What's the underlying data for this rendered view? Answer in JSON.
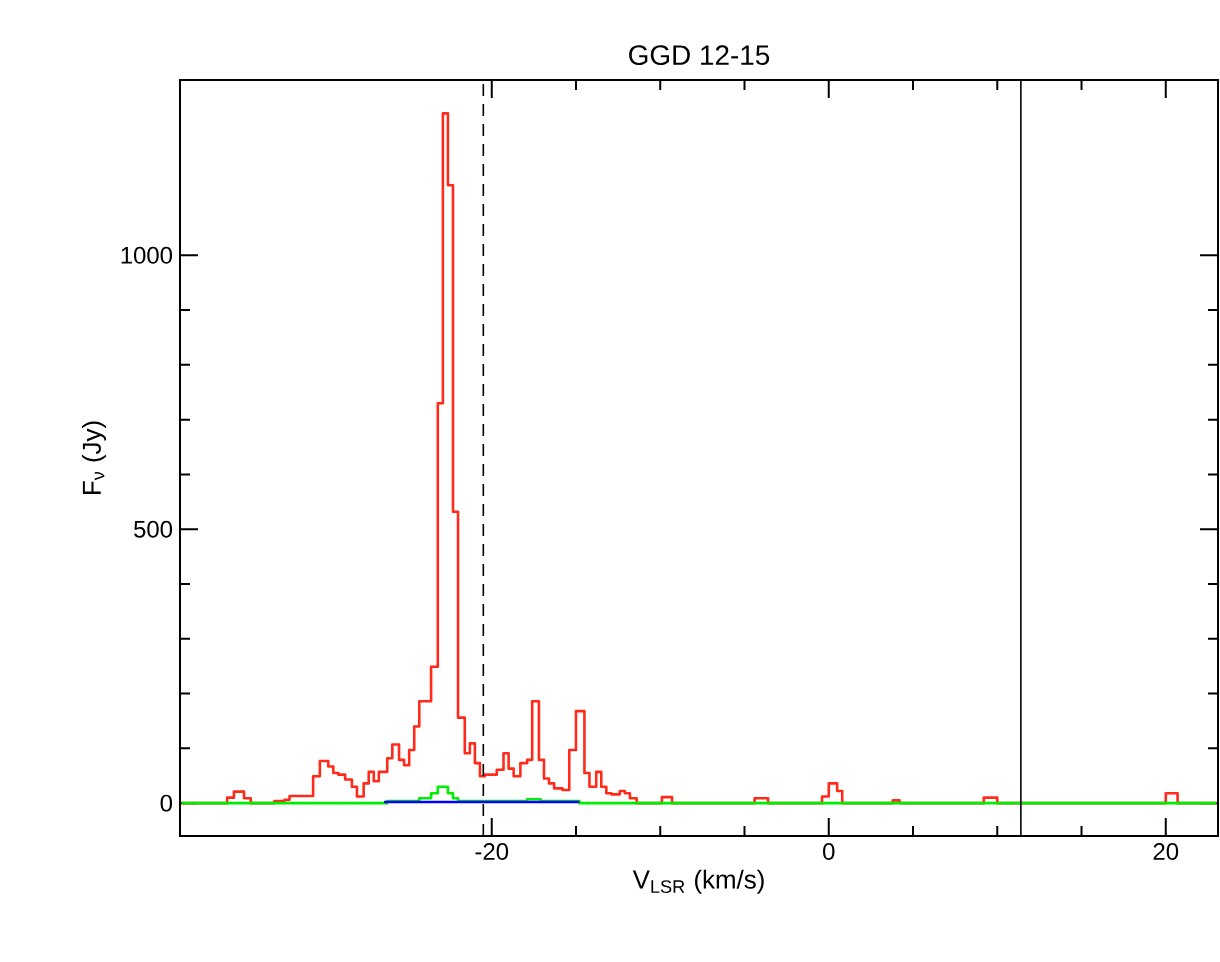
{
  "chart_data": {
    "type": "step",
    "title": "GGD 12-15",
    "xlabel": "V$_{LSR}$ (km/s)",
    "ylabel": "F$_{ν}$ (Jy)",
    "xlim": [
      -38.5,
      23.1
    ],
    "ylim": [
      -60,
      1320
    ],
    "xticks": [
      -20,
      0,
      20
    ],
    "yticks": [
      0,
      500,
      1000
    ],
    "series": [
      {
        "color": "#ff2a1a",
        "x": [
          -38.4,
          -35.7,
          -35.3,
          -34.7,
          -34.3,
          -32.9,
          -32.3,
          -32.0,
          -30.6,
          -30.2,
          -29.7,
          -29.4,
          -29.1,
          -28.7,
          -28.3,
          -28.0,
          -27.6,
          -27.3,
          -27.0,
          -26.7,
          -26.2,
          -25.9,
          -25.5,
          -25.2,
          -24.9,
          -24.6,
          -24.3,
          -23.6,
          -23.2,
          -22.9,
          -22.6,
          -22.3,
          -22.0,
          -21.6,
          -21.3,
          -21.0,
          -20.7,
          -20.4,
          -19.7,
          -19.3,
          -19.0,
          -18.7,
          -18.3,
          -17.9,
          -17.6,
          -17.2,
          -16.9,
          -16.6,
          -16.3,
          -15.8,
          -15.4,
          -15.0,
          -14.5,
          -14.2,
          -13.8,
          -13.5,
          -13.2,
          -12.9,
          -12.4,
          -12.1,
          -11.8,
          -11.4,
          -9.9,
          -9.3,
          -4.4,
          -3.6,
          -0.4,
          0.0,
          0.5,
          0.8,
          3.8,
          4.2,
          9.2,
          10.0,
          20.0,
          20.7,
          23.0
        ],
        "values": [
          0,
          10,
          21,
          9,
          0,
          4,
          6,
          13,
          49,
          77,
          67,
          55,
          52,
          43,
          30,
          12,
          36,
          57,
          40,
          57,
          82,
          107,
          79,
          69,
          97,
          140,
          186,
          249,
          730,
          1259,
          1128,
          532,
          156,
          91,
          109,
          73,
          49,
          52,
          61,
          91,
          63,
          49,
          73,
          79,
          186,
          79,
          45,
          36,
          27,
          24,
          97,
          168,
          55,
          30,
          57,
          30,
          18,
          16,
          22,
          18,
          9,
          0,
          11,
          0,
          9,
          0,
          12,
          36,
          22,
          0,
          5,
          0,
          10,
          0,
          18,
          0,
          0
        ]
      },
      {
        "color": "#00ee00",
        "x": [
          -38.4,
          -26.2,
          -24.3,
          -23.6,
          -23.2,
          -22.6,
          -22.3,
          -22.0,
          -17.9,
          -17.1,
          -14.8,
          23.0
        ],
        "values": [
          0,
          4,
          9,
          18,
          30,
          18,
          9,
          4,
          7,
          4,
          0,
          0
        ]
      },
      {
        "color": "#0000ff",
        "x": [
          -26.4,
          -14.8
        ],
        "values": [
          2,
          2
        ]
      }
    ],
    "ref_lines": [
      {
        "axis": "x",
        "value": -20.5,
        "color": "#000000",
        "line_style": "dashed"
      },
      {
        "axis": "x",
        "value": 11.4,
        "color": "#000000",
        "line_style": "solid"
      }
    ]
  }
}
